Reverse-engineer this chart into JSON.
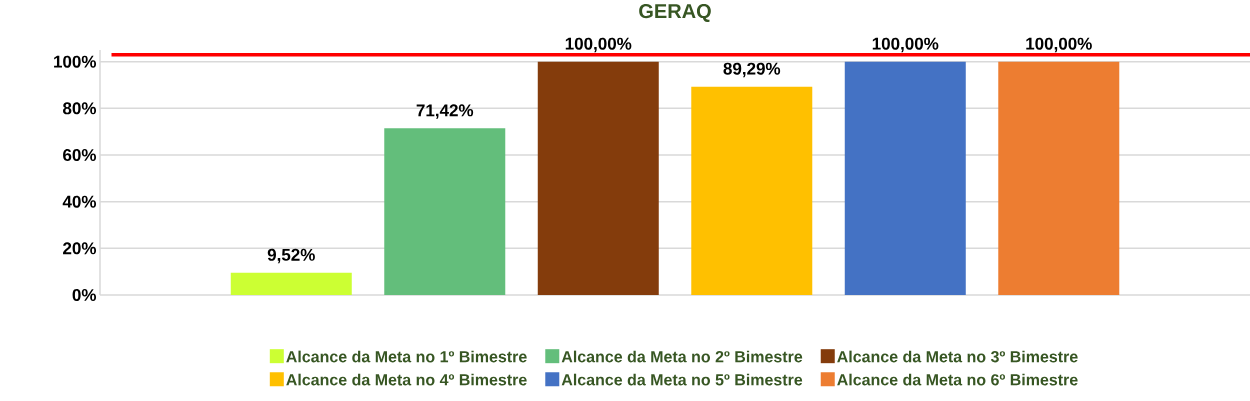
{
  "chart_data": {
    "type": "bar",
    "title": "GERAQ",
    "categories": [
      null
    ],
    "series": [
      {
        "name": "Alcance da Meta no 1º Bimestre",
        "color": "#ccff33",
        "values": [
          9.52
        ],
        "value_labels": [
          "9,52%"
        ]
      },
      {
        "name": "Alcance da Meta no 2º Bimestre",
        "color": "#63be7b",
        "values": [
          71.42
        ],
        "value_labels": [
          "71,42%"
        ]
      },
      {
        "name": "Alcance da Meta no 3º Bimestre",
        "color": "#843c0c",
        "values": [
          100
        ],
        "value_labels": [
          "100,00%"
        ]
      },
      {
        "name": "Alcance da Meta no 4º Bimestre",
        "color": "#ffc000",
        "values": [
          89.29
        ],
        "value_labels": [
          "89,29%"
        ]
      },
      {
        "name": "Alcance da Meta no 5º Bimestre",
        "color": "#4472c4",
        "values": [
          100
        ],
        "value_labels": [
          "100,00%"
        ]
      },
      {
        "name": "Alcance da Meta no 6º Bimestre",
        "color": "#ed7d31",
        "values": [
          100
        ],
        "value_labels": [
          "100,00%"
        ]
      }
    ],
    "ylim": [
      0,
      105
    ],
    "yticks": [
      {
        "value": 0,
        "label": "0%"
      },
      {
        "value": 20,
        "label": "20%"
      },
      {
        "value": 40,
        "label": "40%"
      },
      {
        "value": 60,
        "label": "60%"
      },
      {
        "value": 80,
        "label": "80%"
      },
      {
        "value": 100,
        "label": "100%"
      }
    ],
    "ref_lines": [
      {
        "axis": "y",
        "value": 103,
        "color": "#ff0000"
      }
    ],
    "grid": "y",
    "legend": "bottom"
  }
}
